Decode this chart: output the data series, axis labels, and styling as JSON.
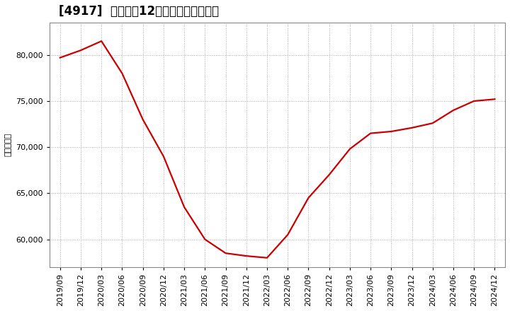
{
  "title": "[4917]  売上高の12か月移動合計の推移",
  "ylabel": "（百万円）",
  "line_color": "#cc0000",
  "background_color": "#ffffff",
  "grid_color": "#aaaaaa",
  "dates": [
    "2019/09",
    "2019/12",
    "2020/03",
    "2020/06",
    "2020/09",
    "2020/12",
    "2021/03",
    "2021/06",
    "2021/09",
    "2021/12",
    "2022/03",
    "2022/06",
    "2022/09",
    "2022/12",
    "2023/03",
    "2023/06",
    "2023/09",
    "2023/12",
    "2024/03",
    "2024/06",
    "2024/09",
    "2024/12"
  ],
  "values": [
    79700,
    80500,
    81500,
    78000,
    73000,
    69000,
    63500,
    60000,
    58500,
    58200,
    58000,
    60500,
    64500,
    67000,
    69800,
    71500,
    71700,
    72100,
    72600,
    74000,
    75000,
    75200
  ],
  "yticks": [
    60000,
    65000,
    70000,
    75000,
    80000
  ],
  "ylim": [
    57000,
    83500
  ],
  "title_fontsize": 12,
  "ylabel_fontsize": 8,
  "tick_fontsize": 8,
  "line_width": 1.6
}
